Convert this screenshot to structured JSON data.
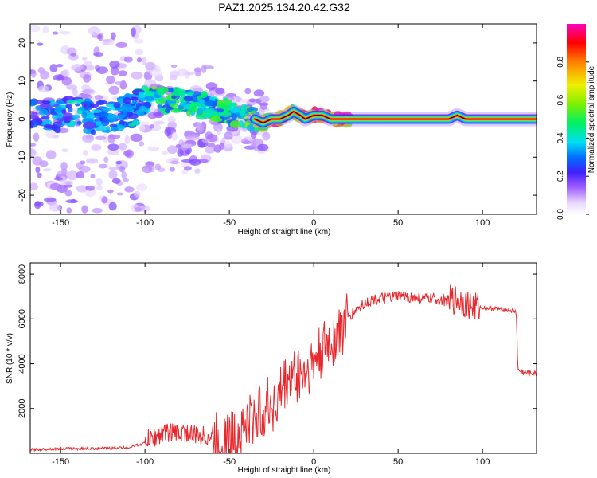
{
  "title": "PAZ1.2025.134.20.42.G32",
  "chart_data": [
    {
      "type": "heatmap",
      "xlabel": "Height of straight line (km)",
      "ylabel": "Frequency (Hz)",
      "xlim": [
        -168,
        132
      ],
      "ylim": [
        -25,
        25
      ],
      "xticks": [
        -150,
        -100,
        -50,
        0,
        50,
        100
      ],
      "yticks": [
        -20,
        -10,
        0,
        10,
        20
      ],
      "colorbar": {
        "label": "Normalized spectral amplitude",
        "range": [
          0,
          1
        ],
        "ticks": [
          "0.0",
          "0.2",
          "0.4",
          "0.6",
          "0.8"
        ],
        "colormap": "rainbow (white-violet-blue-cyan-green-yellow-red-magenta)"
      },
      "ridge": {
        "x": [
          -165,
          -150,
          -140,
          -130,
          -120,
          -110,
          -100,
          -95,
          -90,
          -80,
          -70,
          -60,
          -50,
          -45,
          -40,
          -35,
          -30,
          -25,
          -20,
          -15,
          -12,
          -8,
          -5,
          0,
          5,
          10,
          20,
          40,
          60,
          80,
          85,
          90,
          95,
          100,
          110,
          120,
          125,
          132
        ],
        "y": [
          2,
          1,
          2,
          0,
          1,
          2,
          4,
          6,
          5,
          5,
          4,
          3,
          2,
          1,
          1,
          0,
          -1,
          0,
          0,
          1,
          2,
          1,
          0,
          1,
          1,
          0,
          0,
          0,
          0,
          0,
          1,
          0,
          0,
          0,
          0,
          0,
          0,
          0
        ],
        "amplitude": [
          0.3,
          0.35,
          0.4,
          0.35,
          0.35,
          0.4,
          0.45,
          0.55,
          0.5,
          0.5,
          0.5,
          0.5,
          0.5,
          0.55,
          0.6,
          0.6,
          0.7,
          0.9,
          0.9,
          0.85,
          0.8,
          0.85,
          0.9,
          1.0,
          1.0,
          1.0,
          1.0,
          1.0,
          1.0,
          1.0,
          0.9,
          1.0,
          1.0,
          1.0,
          1.0,
          1.0,
          1.0,
          1.0
        ]
      }
    },
    {
      "type": "line",
      "xlabel": "Height of straight line (km)",
      "ylabel": "SNR (10 * v/v)",
      "xlim": [
        -168,
        132
      ],
      "ylim": [
        0,
        8500
      ],
      "xticks": [
        -150,
        -100,
        -50,
        0,
        50,
        100
      ],
      "yticks": [
        2000,
        4000,
        6000,
        8000
      ],
      "color": "#e8282d",
      "series": [
        {
          "x": [
            -168,
            -150,
            -130,
            -110,
            -100,
            -95,
            -90,
            -85,
            -80,
            -75,
            -70,
            -65,
            -60,
            -55,
            -50,
            -45,
            -40,
            -35,
            -30,
            -25,
            -22,
            -20,
            -15,
            -10,
            -5,
            0,
            5,
            10,
            15,
            20,
            25,
            30,
            35,
            40,
            50,
            60,
            70,
            80,
            85,
            90,
            95,
            100,
            110,
            118,
            120,
            121,
            125,
            132
          ],
          "y": [
            100,
            150,
            150,
            200,
            400,
            500,
            700,
            800,
            700,
            750,
            600,
            600,
            500,
            600,
            600,
            800,
            1300,
            1600,
            1900,
            2300,
            2000,
            2700,
            3300,
            3500,
            3600,
            4000,
            4500,
            5000,
            5300,
            6000,
            6400,
            6700,
            6850,
            6900,
            7000,
            6950,
            6900,
            6800,
            6900,
            6700,
            6550,
            6500,
            6450,
            6350,
            6300,
            3700,
            3600,
            3550
          ]
        }
      ]
    }
  ]
}
